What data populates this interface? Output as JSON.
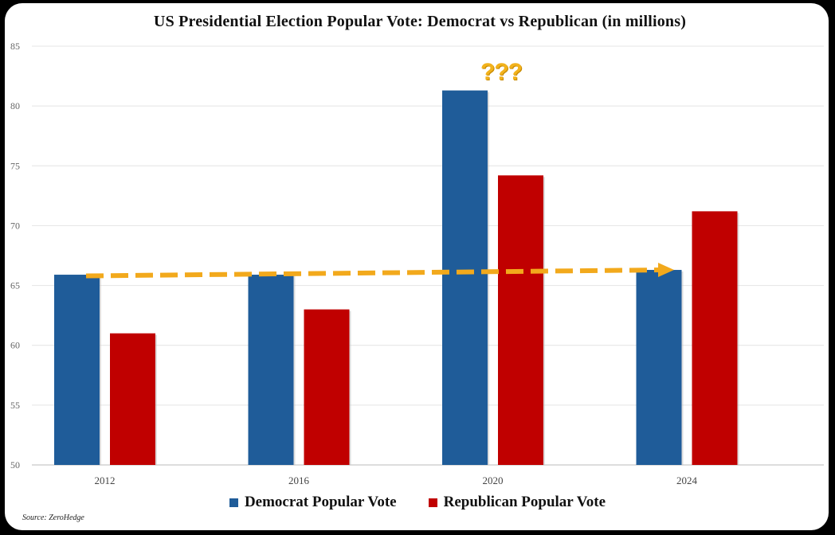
{
  "chart_data": {
    "type": "bar",
    "title": "US Presidential Election Popular Vote: Democrat vs Republican (in millions)",
    "categories": [
      "2012",
      "2016",
      "2020",
      "2024"
    ],
    "series": [
      {
        "name": "Democrat Popular Vote",
        "color": "#1f5c99",
        "values": [
          65.9,
          65.9,
          81.3,
          66.3
        ]
      },
      {
        "name": "Republican Popular Vote",
        "color": "#c00000",
        "values": [
          61.0,
          63.0,
          74.2,
          71.2
        ]
      }
    ],
    "ylim": [
      50,
      85
    ],
    "yticks": [
      "50",
      "55",
      "60",
      "65",
      "70",
      "75",
      "80",
      "85"
    ],
    "grid": true,
    "legend": "bottom",
    "annotations": {
      "question_marks": "???",
      "trend_arrow": {
        "from_value": 65.8,
        "to_value": 66.3,
        "color": "#f2a91c"
      }
    },
    "source": "Source: ZeroHedge"
  }
}
